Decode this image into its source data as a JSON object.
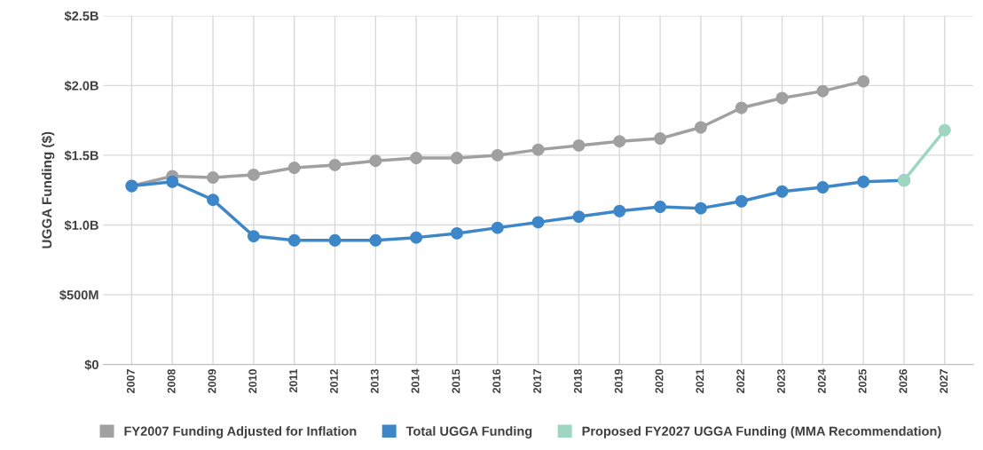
{
  "chart_data": {
    "type": "line",
    "ylabel": "UGGA Funding ($)",
    "categories": [
      "2007",
      "2008",
      "2009",
      "2010",
      "2011",
      "2012",
      "2013",
      "2014",
      "2015",
      "2016",
      "2017",
      "2018",
      "2019",
      "2020",
      "2021",
      "2022",
      "2023",
      "2024",
      "2025",
      "2026",
      "2027"
    ],
    "series": [
      {
        "name": "FY2007 Funding Adjusted for Inflation",
        "color": "#a0a0a0",
        "values": [
          1280000000,
          1350000000,
          1340000000,
          1360000000,
          1410000000,
          1430000000,
          1460000000,
          1480000000,
          1480000000,
          1500000000,
          1540000000,
          1570000000,
          1600000000,
          1620000000,
          1700000000,
          1840000000,
          1910000000,
          1960000000,
          2030000000,
          null,
          null
        ]
      },
      {
        "name": "Total UGGA Funding",
        "color": "#3d87c9",
        "values": [
          1280000000,
          1310000000,
          1180000000,
          920000000,
          890000000,
          890000000,
          890000000,
          910000000,
          940000000,
          980000000,
          1020000000,
          1060000000,
          1100000000,
          1130000000,
          1120000000,
          1170000000,
          1240000000,
          1270000000,
          1310000000,
          1320000000,
          null
        ]
      },
      {
        "name": "Proposed FY2027 UGGA Funding (MMA Recommendation)",
        "color": "#9fd6c1",
        "values": [
          null,
          null,
          null,
          null,
          null,
          null,
          null,
          null,
          null,
          null,
          null,
          null,
          null,
          null,
          null,
          null,
          null,
          null,
          null,
          1320000000,
          1680000000
        ]
      }
    ],
    "ylim": [
      0,
      2500000000
    ],
    "yticks": [
      {
        "value": 0,
        "label": "$0"
      },
      {
        "value": 500000000,
        "label": "$500M"
      },
      {
        "value": 1000000000,
        "label": "$1.0B"
      },
      {
        "value": 1500000000,
        "label": "$1.5B"
      },
      {
        "value": 2000000000,
        "label": "$2.0B"
      },
      {
        "value": 2500000000,
        "label": "$2.5B"
      }
    ],
    "grid": true,
    "legend": "bottom",
    "marker": "circle",
    "line_style": "solid"
  }
}
